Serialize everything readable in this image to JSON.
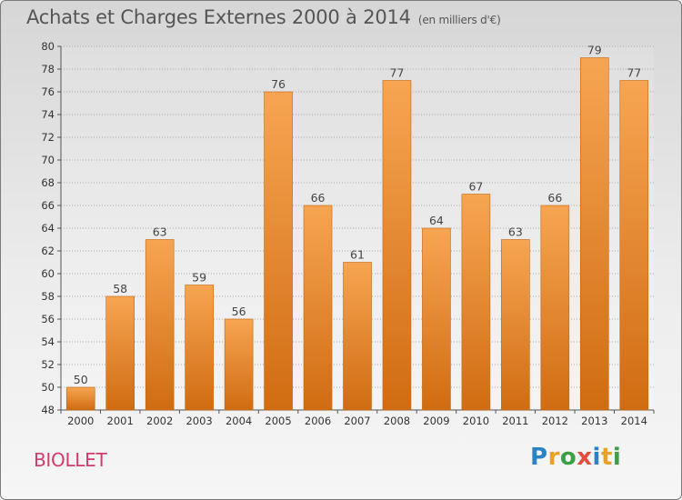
{
  "header": {
    "title": "Achats et Charges Externes 2000 à 2014",
    "unit": "(en milliers d'€)"
  },
  "footer": {
    "commune": "BIOLLET",
    "logo_text": "Proxiti"
  },
  "colors": {
    "bar_top": "#f7a552",
    "bar_bottom": "#d06c12",
    "commune": "#d63a6b",
    "logo": [
      "#2a82c7",
      "#e8a22a",
      "#3aa043",
      "#e34d3c",
      "#2a82c7",
      "#e8a22a",
      "#3aa043"
    ]
  },
  "chart_data": {
    "type": "bar",
    "title": "Achats et Charges Externes 2000 à 2014",
    "subtitle": "(en milliers d'€)",
    "categories": [
      "2000",
      "2001",
      "2002",
      "2003",
      "2004",
      "2005",
      "2006",
      "2007",
      "2008",
      "2009",
      "2010",
      "2011",
      "2012",
      "2013",
      "2014"
    ],
    "values": [
      50,
      58,
      63,
      59,
      56,
      76,
      66,
      61,
      77,
      64,
      67,
      63,
      66,
      79,
      77
    ],
    "ylim": [
      48,
      80
    ],
    "yticks": [
      48,
      50,
      52,
      54,
      56,
      58,
      60,
      62,
      64,
      66,
      68,
      70,
      72,
      74,
      76,
      78,
      80
    ],
    "grid": true,
    "xlabel": "",
    "ylabel": ""
  }
}
